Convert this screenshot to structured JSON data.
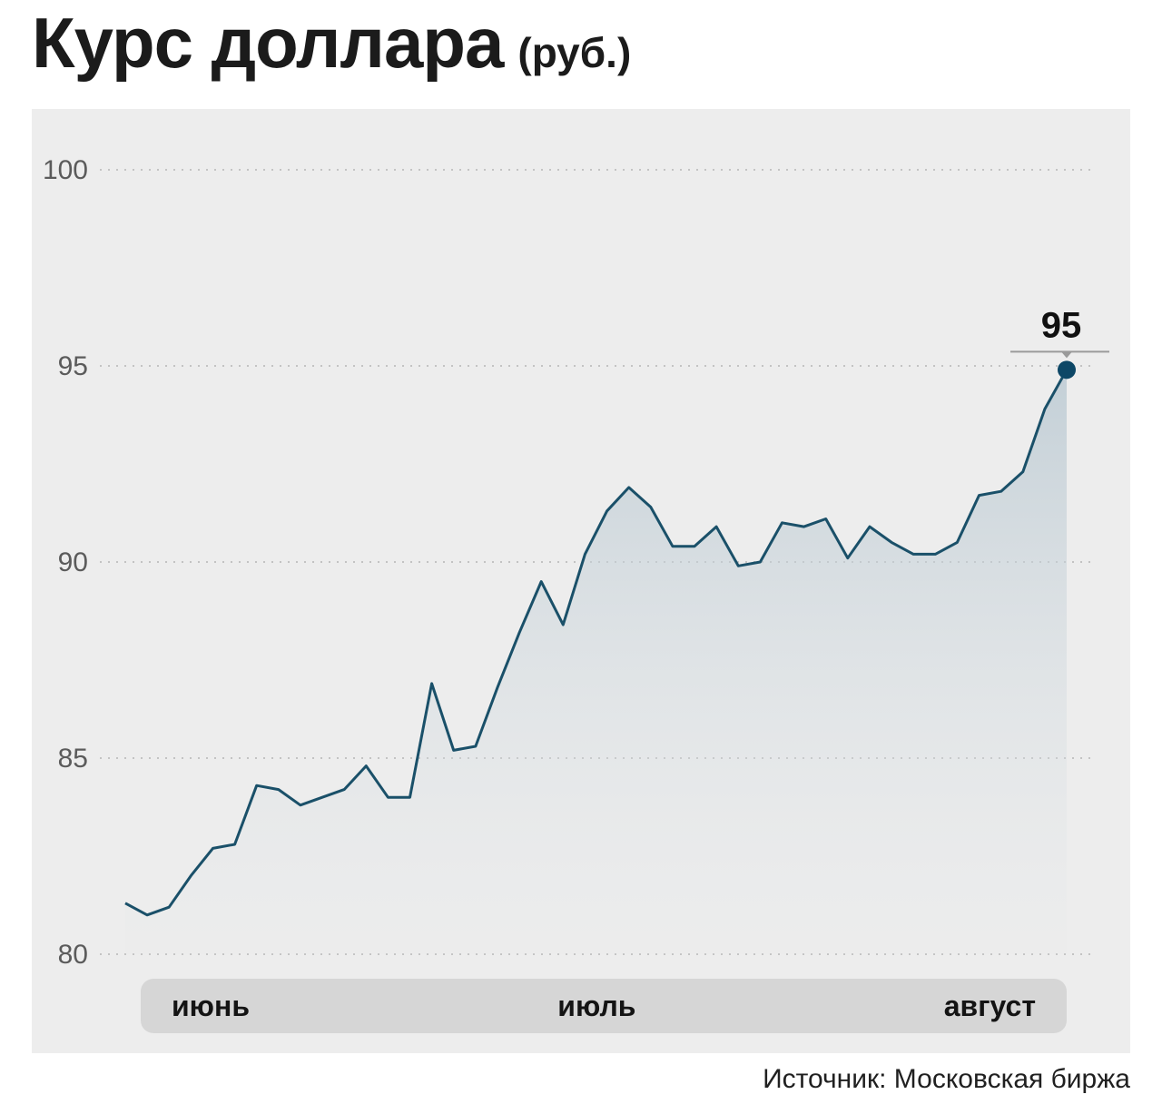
{
  "title": {
    "main": "Курс доллара",
    "unit": "(руб.)"
  },
  "source": "Источник: Московская биржа",
  "chart_data": {
    "type": "area",
    "title": "Курс доллара (руб.)",
    "xlabel": "",
    "ylabel": "руб.",
    "ylim": [
      80,
      100
    ],
    "yticks": [
      100,
      95,
      90,
      85,
      80
    ],
    "x_axis_months": [
      "июнь",
      "июль",
      "август"
    ],
    "values": [
      81.3,
      81.0,
      81.2,
      82.0,
      82.7,
      82.8,
      84.3,
      84.2,
      83.8,
      84.0,
      84.2,
      84.8,
      84.0,
      84.0,
      86.9,
      85.2,
      85.3,
      86.8,
      88.2,
      89.5,
      88.4,
      90.2,
      91.3,
      91.9,
      91.4,
      90.4,
      90.4,
      90.9,
      89.9,
      90.0,
      91.0,
      90.9,
      91.1,
      90.1,
      90.9,
      90.5,
      90.2,
      90.2,
      90.5,
      91.7,
      91.8,
      92.3,
      93.9,
      94.9
    ],
    "end_label": "95",
    "grid": "dotted",
    "legend": "none",
    "line_color": "#1a5069",
    "dot_color": "#0d4766",
    "area_top_color": "#a4b9c6",
    "area_bottom_color": "#e4e7e9",
    "grid_color": "#c3c3c3",
    "tick_label_color": "#5b5b5b",
    "callout_color": "#9a9a9a"
  }
}
